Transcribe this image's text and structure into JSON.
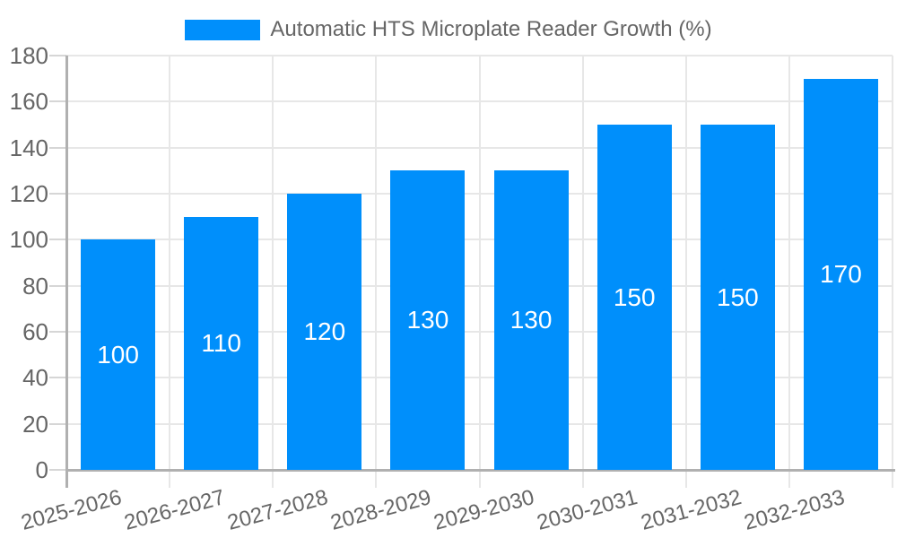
{
  "legend": {
    "label": "Automatic HTS Microplate Reader Growth (%)"
  },
  "chart_data": {
    "type": "bar",
    "title": "",
    "series_label": "Automatic HTS Microplate Reader Growth (%)",
    "categories": [
      "2025-2026",
      "2026-2027",
      "2027-2028",
      "2028-2029",
      "2029-2030",
      "2030-2031",
      "2031-2032",
      "2032-2033"
    ],
    "values": [
      100,
      110,
      120,
      130,
      130,
      150,
      150,
      170
    ],
    "xlabel": "",
    "ylabel": "",
    "ylim": [
      0,
      180
    ],
    "ytick_step": 20,
    "grid": true,
    "legend_position": "top",
    "x_label_rotation_deg": -15,
    "colors": {
      "bar": "#008FFB",
      "value_label": "#ffffff",
      "axis_text": "#666666",
      "grid_line": "#e7e7e7",
      "tick": "#d6d6d6",
      "axis_line": "#b0b0b0",
      "background": "#ffffff"
    }
  }
}
